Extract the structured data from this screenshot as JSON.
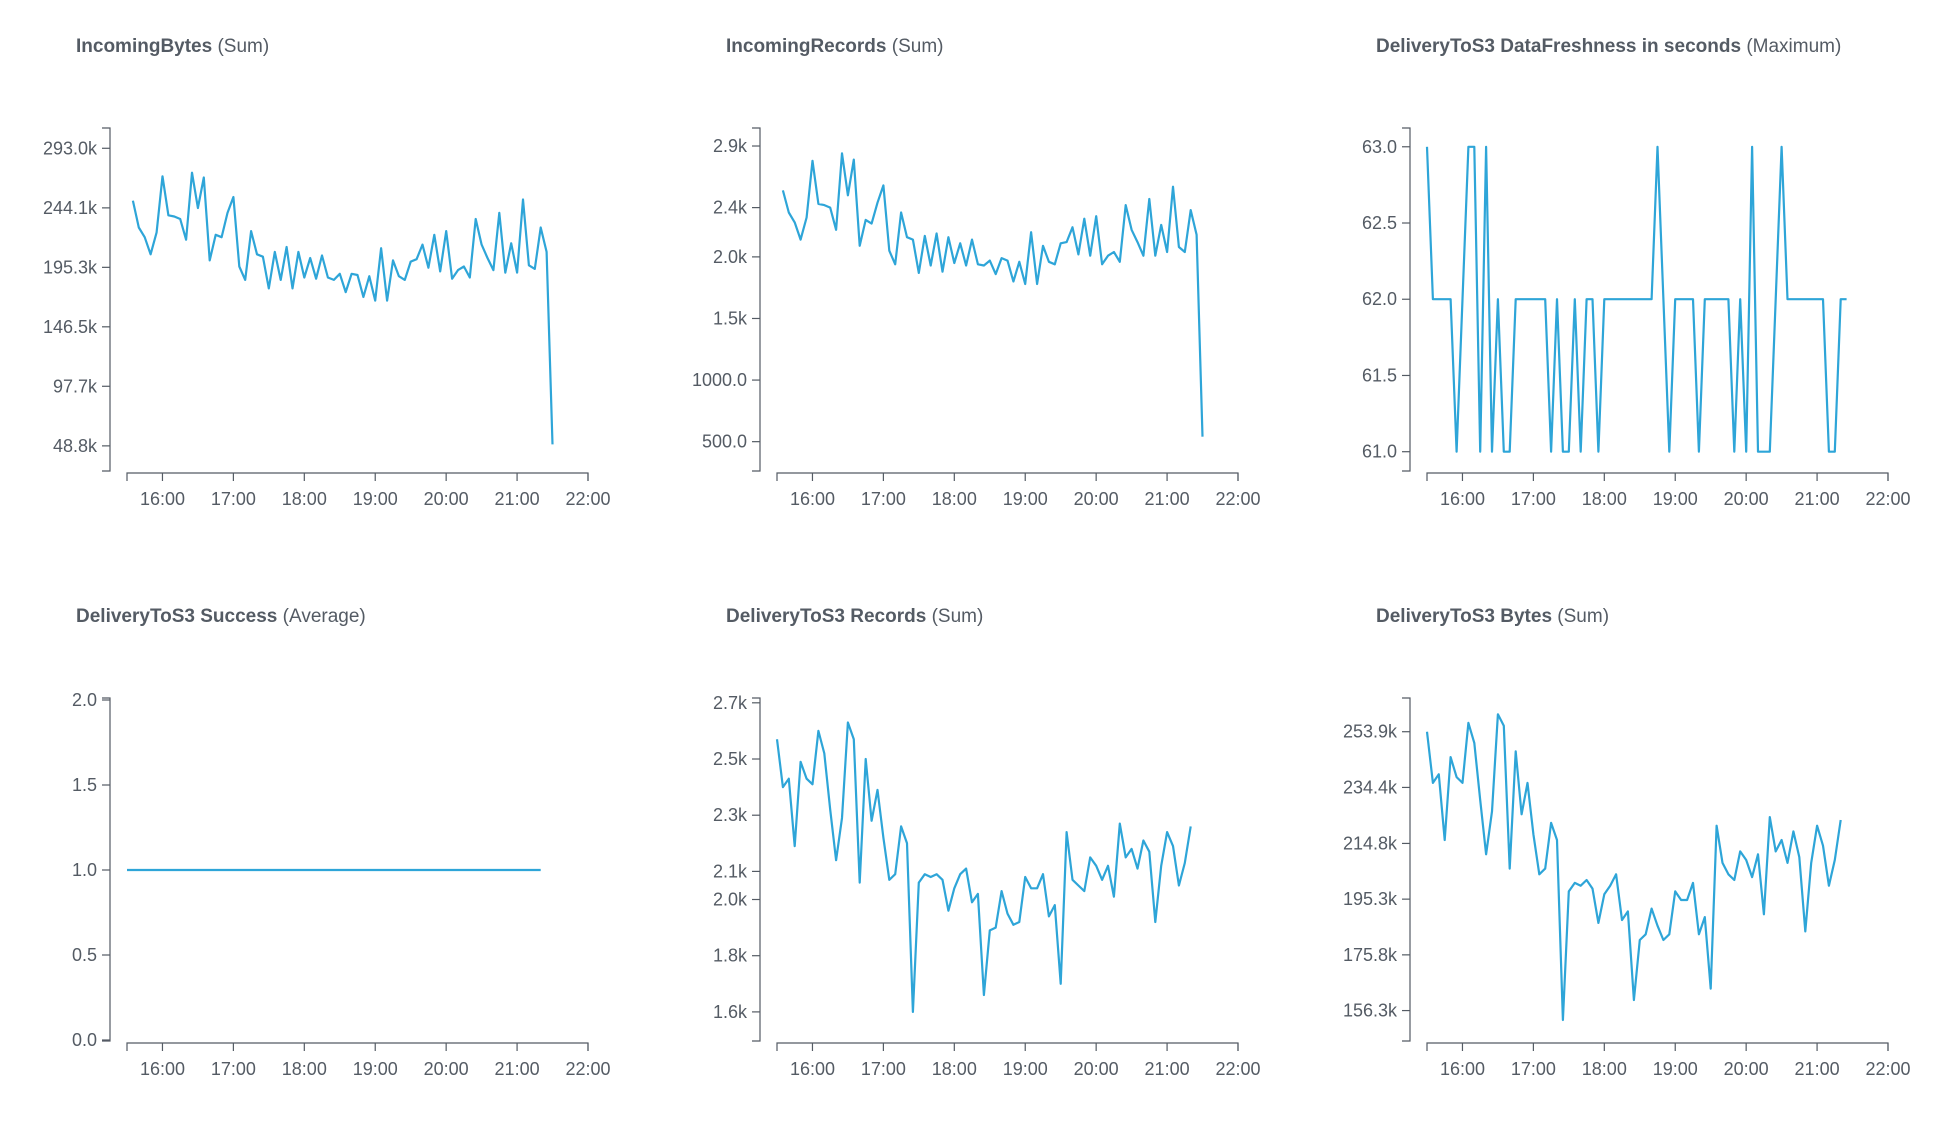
{
  "series_color": "#2ea5d8",
  "chart_data": [
    {
      "type": "line",
      "title_metric": "IncomingBytes",
      "title_stat": "(Sum)",
      "ylim": [
        29000,
        308000
      ],
      "yticks": [
        48800,
        97700,
        146500,
        195300,
        244100,
        293000
      ],
      "ytick_labels": [
        "48.8k",
        "97.7k",
        "146.5k",
        "195.3k",
        "244.1k",
        "293.0k"
      ],
      "xlim": [
        "15:30",
        "22:00"
      ],
      "xticks": [
        "16:00",
        "17:00",
        "18:00",
        "19:00",
        "20:00",
        "21:00",
        "22:00"
      ],
      "x_start": "15:35",
      "x_step_minutes": 5,
      "values": [
        250000,
        228000,
        220000,
        206000,
        224000,
        270000,
        238000,
        237000,
        235000,
        218000,
        273000,
        244000,
        269000,
        201000,
        222000,
        220000,
        240000,
        253000,
        196000,
        185000,
        225000,
        206000,
        204000,
        178000,
        208000,
        185000,
        212000,
        178000,
        208000,
        187000,
        203000,
        186000,
        205000,
        187000,
        185000,
        190000,
        175000,
        190000,
        189000,
        171000,
        188000,
        168000,
        211000,
        168000,
        201000,
        188000,
        185000,
        200000,
        202000,
        214000,
        195000,
        222000,
        192000,
        225000,
        186000,
        193000,
        196000,
        187000,
        235000,
        214000,
        203000,
        193000,
        240000,
        191000,
        215000,
        191000,
        251000,
        197000,
        194000,
        228000,
        208000,
        50000
      ]
    },
    {
      "type": "line",
      "title_metric": "IncomingRecords",
      "title_stat": "(Sum)",
      "ylim": [
        270,
        3030
      ],
      "yticks": [
        500,
        1000,
        1500,
        2000,
        2400,
        2900
      ],
      "ytick_labels": [
        "500.0",
        "1000.0",
        "1.5k",
        "2.0k",
        "2.4k",
        "2.9k"
      ],
      "xlim": [
        "15:30",
        "22:00"
      ],
      "xticks": [
        "16:00",
        "17:00",
        "18:00",
        "19:00",
        "20:00",
        "21:00",
        "22:00"
      ],
      "x_start": "15:35",
      "x_step_minutes": 5,
      "values": [
        2540,
        2360,
        2280,
        2140,
        2320,
        2780,
        2430,
        2420,
        2400,
        2220,
        2840,
        2500,
        2790,
        2090,
        2300,
        2270,
        2440,
        2580,
        2050,
        1940,
        2360,
        2160,
        2140,
        1870,
        2170,
        1930,
        2190,
        1880,
        2160,
        1950,
        2110,
        1930,
        2140,
        1940,
        1930,
        1970,
        1860,
        1990,
        1970,
        1800,
        1960,
        1780,
        2200,
        1780,
        2090,
        1960,
        1940,
        2110,
        2120,
        2240,
        2020,
        2310,
        2010,
        2330,
        1940,
        2010,
        2040,
        1960,
        2420,
        2220,
        2120,
        2010,
        2470,
        2010,
        2260,
        2040,
        2570,
        2080,
        2040,
        2380,
        2180,
        540
      ]
    },
    {
      "type": "line",
      "title_metric": "DeliveryToS3 DataFreshness in seconds",
      "title_stat": "(Maximum)",
      "ylim": [
        60.88,
        63.11
      ],
      "yticks": [
        61.0,
        61.5,
        62.0,
        62.5,
        63.0
      ],
      "ytick_labels": [
        "61.0",
        "61.5",
        "62.0",
        "62.5",
        "63.0"
      ],
      "xlim": [
        "15:30",
        "22:00"
      ],
      "xticks": [
        "16:00",
        "17:00",
        "18:00",
        "19:00",
        "20:00",
        "21:00",
        "22:00"
      ],
      "x_start": "15:30",
      "x_step_minutes": 5,
      "values": [
        63,
        62,
        62,
        62,
        62,
        61,
        62,
        63,
        63,
        61,
        63,
        61,
        62,
        61,
        61,
        62,
        62,
        62,
        62,
        62,
        62,
        61,
        62,
        61,
        61,
        62,
        61,
        62,
        62,
        61,
        62,
        62,
        62,
        62,
        62,
        62,
        62,
        62,
        62,
        63,
        62,
        61,
        62,
        62,
        62,
        62,
        61,
        62,
        62,
        62,
        62,
        62,
        61,
        62,
        61,
        63,
        61,
        61,
        61,
        62,
        63,
        62,
        62,
        62,
        62,
        62,
        62,
        62,
        61,
        61,
        62,
        62
      ]
    },
    {
      "type": "line",
      "title_metric": "DeliveryToS3 Success",
      "title_stat": "(Average)",
      "ylim": [
        0.0,
        2.0
      ],
      "yticks": [
        0.0,
        0.5,
        1.0,
        1.5,
        2.0
      ],
      "ytick_labels": [
        "0.0",
        "0.5",
        "1.0",
        "1.5",
        "2.0"
      ],
      "xlim": [
        "15:30",
        "22:00"
      ],
      "xticks": [
        "16:00",
        "17:00",
        "18:00",
        "19:00",
        "20:00",
        "21:00",
        "22:00"
      ],
      "x_start": "15:30",
      "x_step_minutes": 350,
      "values": [
        1.0,
        1.0
      ]
    },
    {
      "type": "line",
      "title_metric": "DeliveryToS3 Records",
      "title_stat": "(Sum)",
      "ylim": [
        1500,
        2710
      ],
      "yticks": [
        1600,
        1800,
        2000,
        2100,
        2300,
        2500,
        2700
      ],
      "ytick_labels": [
        "1.6k",
        "1.8k",
        "2.0k",
        "2.1k",
        "2.3k",
        "2.5k",
        "2.7k"
      ],
      "xlim": [
        "15:30",
        "22:00"
      ],
      "xticks": [
        "16:00",
        "17:00",
        "18:00",
        "19:00",
        "20:00",
        "21:00",
        "22:00"
      ],
      "x_start": "15:30",
      "x_step_minutes": 5,
      "values": [
        2570,
        2400,
        2430,
        2190,
        2490,
        2430,
        2410,
        2600,
        2520,
        2320,
        2140,
        2290,
        2630,
        2570,
        2060,
        2500,
        2280,
        2390,
        2220,
        2070,
        2090,
        2260,
        2200,
        1600,
        2060,
        2090,
        2080,
        2090,
        2070,
        1960,
        2040,
        2090,
        2110,
        1990,
        2020,
        1660,
        1890,
        1900,
        2030,
        1950,
        1910,
        1920,
        2080,
        2040,
        2040,
        2090,
        1940,
        1980,
        1700,
        2240,
        2070,
        2050,
        2030,
        2150,
        2120,
        2070,
        2120,
        2010,
        2270,
        2150,
        2180,
        2110,
        2210,
        2170,
        1920,
        2120,
        2240,
        2190,
        2050,
        2130,
        2260
      ]
    },
    {
      "type": "line",
      "title_metric": "DeliveryToS3 Bytes",
      "title_stat": "(Sum)",
      "ylim": [
        146000,
        265000
      ],
      "yticks": [
        156300,
        175800,
        195300,
        214800,
        234400,
        253900
      ],
      "ytick_labels": [
        "156.3k",
        "175.8k",
        "195.3k",
        "214.8k",
        "234.4k",
        "253.9k"
      ],
      "xlim": [
        "15:30",
        "22:00"
      ],
      "xticks": [
        "16:00",
        "17:00",
        "18:00",
        "19:00",
        "20:00",
        "21:00",
        "22:00"
      ],
      "x_start": "15:30",
      "x_step_minutes": 5,
      "values": [
        253900,
        236000,
        239000,
        216000,
        245000,
        238000,
        236000,
        257000,
        250000,
        230000,
        211000,
        226000,
        260000,
        256000,
        206000,
        247000,
        225000,
        236000,
        218000,
        204000,
        206000,
        222000,
        216000,
        153000,
        198000,
        201000,
        200000,
        202000,
        199000,
        187000,
        197000,
        200000,
        204000,
        188000,
        191000,
        160000,
        181000,
        183000,
        192000,
        186000,
        181000,
        183000,
        198000,
        195000,
        195000,
        201000,
        183000,
        189000,
        164000,
        221000,
        208000,
        204000,
        202000,
        212000,
        209000,
        203000,
        211000,
        190000,
        224000,
        212000,
        216000,
        208000,
        219000,
        210000,
        184000,
        208000,
        221000,
        214000,
        200000,
        209000,
        223000
      ]
    }
  ]
}
